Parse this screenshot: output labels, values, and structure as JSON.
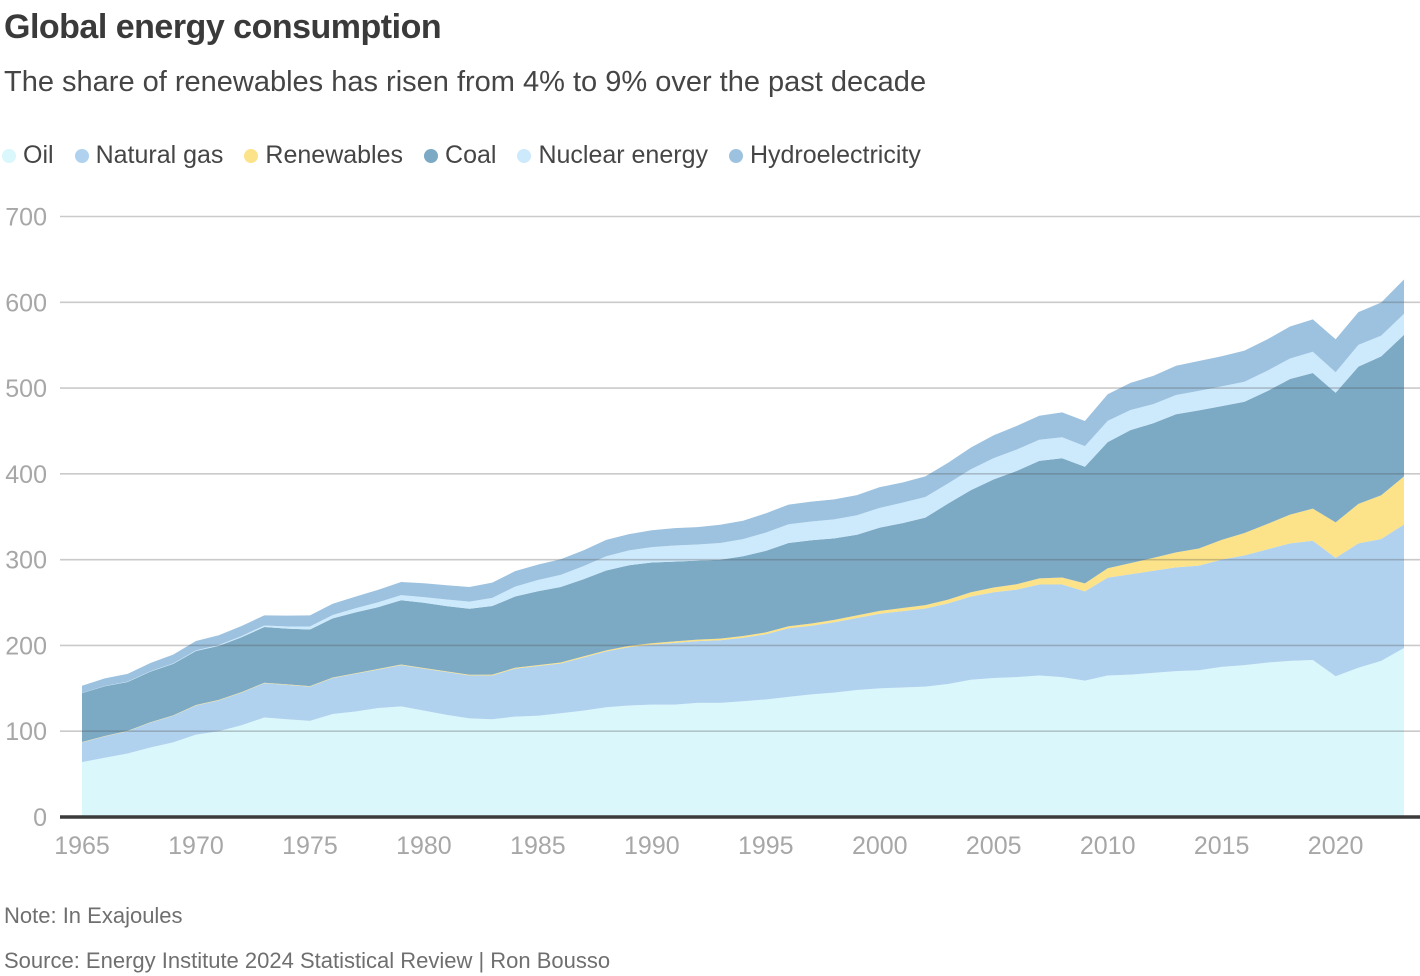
{
  "note": "Note: In Exajoules",
  "source": "Source: Energy Institute 2024 Statistical Review | Ron Bousso",
  "colors": {
    "background": "#ffffff",
    "title_text": "#3a3a3a",
    "subtitle_text": "#454545",
    "tick_text": "#a7a7a7",
    "footer_text": "#6f6f6f",
    "axis_line": "#3b3b3b",
    "gridline": "rgba(80,80,80,0.3)"
  },
  "chart_data": {
    "type": "area",
    "stacked": true,
    "title": "Global energy consumption",
    "subtitle": "The share of renewables has risen from 4% to 9% over the past decade",
    "unit": "Exajoules",
    "xlabel": "",
    "ylabel": "",
    "ylim": [
      0,
      700
    ],
    "yticks": [
      0,
      100,
      200,
      300,
      400,
      500,
      600,
      700
    ],
    "xticks": [
      1965,
      1970,
      1975,
      1980,
      1985,
      1990,
      1995,
      2000,
      2005,
      2010,
      2015,
      2020
    ],
    "grid": "horizontal",
    "legend_position": "top-left",
    "x": [
      1965,
      1966,
      1967,
      1968,
      1969,
      1970,
      1971,
      1972,
      1973,
      1974,
      1975,
      1976,
      1977,
      1978,
      1979,
      1980,
      1981,
      1982,
      1983,
      1984,
      1985,
      1986,
      1987,
      1988,
      1989,
      1990,
      1991,
      1992,
      1993,
      1994,
      1995,
      1996,
      1997,
      1998,
      1999,
      2000,
      2001,
      2002,
      2003,
      2004,
      2005,
      2006,
      2007,
      2008,
      2009,
      2010,
      2011,
      2012,
      2013,
      2014,
      2015,
      2016,
      2017,
      2018,
      2019,
      2020,
      2021,
      2022,
      2023
    ],
    "series": [
      {
        "name": "Oil",
        "color": "#daf7fc",
        "values": [
          64,
          69,
          74,
          81,
          87,
          96,
          100,
          107,
          116,
          114,
          112,
          120,
          123,
          127,
          129,
          124,
          119,
          115,
          114,
          117,
          118,
          121,
          124,
          128,
          130,
          131,
          131,
          133,
          133,
          135,
          137,
          140,
          143,
          145,
          148,
          150,
          151,
          152,
          155,
          160,
          162,
          163,
          165,
          163,
          159,
          165,
          166,
          168,
          170,
          171,
          175,
          177,
          180,
          182,
          183,
          164,
          174,
          182,
          197
        ]
      },
      {
        "name": "Natural gas",
        "color": "#b1d2ee",
        "values": [
          23,
          25,
          26,
          29,
          31,
          34,
          36,
          38,
          40,
          40,
          40,
          42,
          44,
          45,
          48,
          49,
          50,
          50,
          51,
          56,
          58,
          58,
          62,
          65,
          68,
          70,
          72,
          72,
          73,
          74,
          76,
          80,
          80,
          82,
          84,
          87,
          89,
          91,
          94,
          97,
          100,
          102,
          106,
          108,
          104,
          114,
          117,
          119,
          121,
          122,
          125,
          128,
          132,
          137,
          139,
          138,
          145,
          142,
          144
        ]
      },
      {
        "name": "Renewables",
        "color": "#fce289",
        "values": [
          0.4,
          0.4,
          0.4,
          0.4,
          0.5,
          0.5,
          0.5,
          0.5,
          0.5,
          0.6,
          0.6,
          0.6,
          0.6,
          0.7,
          0.7,
          0.7,
          0.8,
          0.8,
          0.9,
          1.0,
          1.1,
          1.1,
          1.2,
          1.3,
          1.5,
          1.6,
          1.7,
          1.8,
          1.9,
          2.0,
          2.2,
          2.4,
          2.6,
          2.8,
          3.0,
          3.3,
          3.6,
          4.0,
          4.4,
          5.0,
          5.6,
          6.3,
          7.2,
          8.2,
          9.3,
          11,
          13,
          15,
          17.5,
          20,
          23,
          26,
          29.5,
          33.5,
          37.5,
          41.5,
          46,
          51,
          56
        ]
      },
      {
        "name": "Coal",
        "color": "#7caac4",
        "values": [
          57,
          58,
          57,
          59,
          60,
          63,
          63,
          64,
          65,
          65,
          66,
          69,
          71,
          72,
          75,
          76,
          76,
          77,
          80,
          83,
          86,
          88,
          90,
          93,
          94,
          94,
          93,
          92,
          92,
          93,
          95,
          97,
          97,
          95,
          94,
          97,
          99,
          102,
          112,
          119,
          126,
          132,
          137,
          139,
          136,
          147,
          155,
          157,
          161,
          161,
          156,
          153,
          155,
          158,
          158,
          151,
          160,
          162,
          165
        ]
      },
      {
        "name": "Nuclear energy",
        "color": "#cde9fc",
        "values": [
          0.2,
          0.3,
          0.4,
          0.5,
          0.6,
          0.7,
          1.0,
          1.4,
          1.8,
          2.4,
          3.4,
          3.9,
          4.8,
          5.7,
          6.0,
          6.6,
          7.7,
          8.3,
          9.5,
          11.5,
          13.2,
          14.1,
          15.2,
          16.6,
          17.3,
          18,
          18.8,
          18.9,
          19.5,
          19.9,
          21.3,
          21.9,
          21.8,
          22.1,
          22.7,
          23.1,
          23.8,
          24,
          23.5,
          24.4,
          24.7,
          24.9,
          24.6,
          24.4,
          24,
          24.8,
          23.5,
          22.3,
          22.4,
          22.7,
          23,
          23.3,
          23.7,
          24,
          24.9,
          23.9,
          25.3,
          24.1,
          24.6
        ]
      },
      {
        "name": "Hydroelectricity",
        "color": "#9dc2df",
        "values": [
          8.4,
          8.9,
          9.1,
          9.6,
          10.2,
          10.9,
          11.3,
          11.7,
          11.8,
          12.8,
          13.1,
          13.1,
          13.5,
          14.5,
          15.3,
          16.2,
          16.6,
          17,
          17.8,
          18.1,
          17.9,
          18.2,
          18.4,
          19.1,
          18.9,
          19.6,
          20.2,
          20.2,
          21.2,
          21.5,
          22.5,
          22.9,
          23.2,
          23.4,
          23.5,
          24.1,
          23.5,
          24,
          24,
          25.3,
          26.7,
          27.6,
          27.9,
          29.1,
          29.3,
          31,
          31.5,
          32.9,
          34.1,
          34.9,
          35.1,
          36.3,
          36.5,
          37.3,
          37.7,
          38.5,
          38.3,
          38.7,
          40
        ]
      }
    ]
  }
}
